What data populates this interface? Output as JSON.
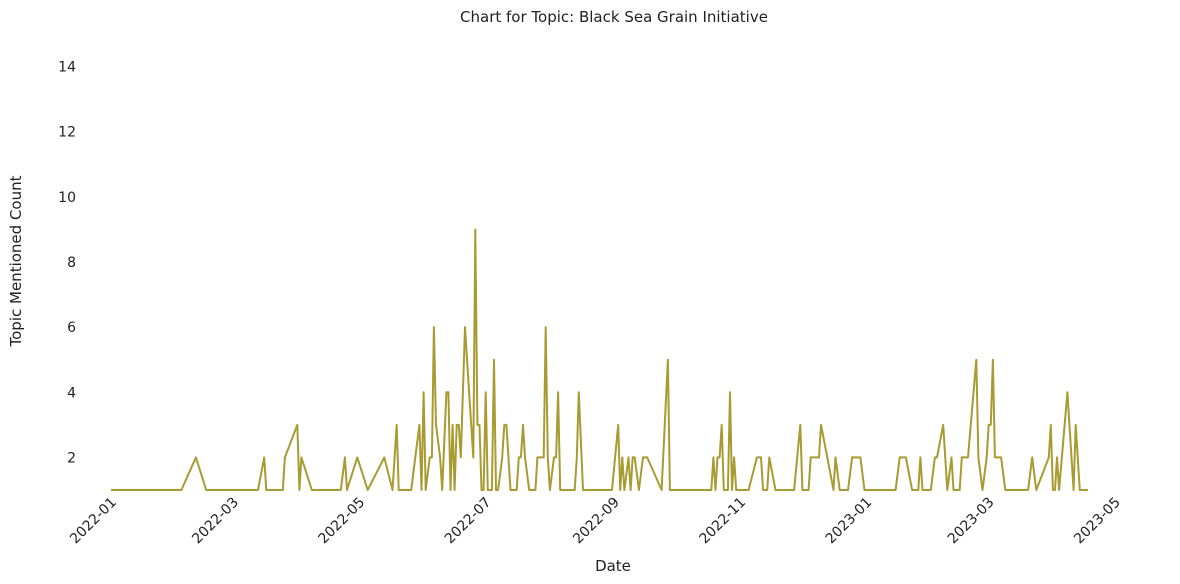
{
  "chart_data": {
    "type": "line",
    "title": "Chart for Topic: Black Sea Grain Initiative",
    "xlabel": "Date",
    "ylabel": "Topic Mentioned Count",
    "x_ticks": [
      "2022-01",
      "2022-03",
      "2022-05",
      "2022-07",
      "2022-09",
      "2022-11",
      "2023-01",
      "2023-03",
      "2023-05"
    ],
    "y_ticks": [
      2,
      4,
      6,
      8,
      10,
      12,
      14
    ],
    "xlim": [
      "2022-01-01",
      "2023-05-01"
    ],
    "ylim": [
      1,
      14.6
    ],
    "grid": false,
    "line_color": "#a89b32",
    "series": [
      {
        "points": [
          [
            "2022-01-01",
            1
          ],
          [
            "2022-02-04",
            1
          ],
          [
            "2022-02-11",
            2
          ],
          [
            "2022-02-16",
            1
          ],
          [
            "2022-03-09",
            1
          ],
          [
            "2022-03-13",
            1
          ],
          [
            "2022-03-16",
            2
          ],
          [
            "2022-03-17",
            1
          ],
          [
            "2022-03-25",
            1
          ],
          [
            "2022-03-26",
            2
          ],
          [
            "2022-04-01",
            3
          ],
          [
            "2022-04-02",
            1
          ],
          [
            "2022-04-03",
            2
          ],
          [
            "2022-04-08",
            1
          ],
          [
            "2022-04-22",
            1
          ],
          [
            "2022-04-24",
            2
          ],
          [
            "2022-04-25",
            1
          ],
          [
            "2022-04-30",
            2
          ],
          [
            "2022-05-05",
            1
          ],
          [
            "2022-05-13",
            2
          ],
          [
            "2022-05-17",
            1
          ],
          [
            "2022-05-19",
            3
          ],
          [
            "2022-05-20",
            1
          ],
          [
            "2022-05-26",
            1
          ],
          [
            "2022-05-30",
            3
          ],
          [
            "2022-05-31",
            1
          ],
          [
            "2022-06-01",
            4
          ],
          [
            "2022-06-02",
            1
          ],
          [
            "2022-06-04",
            2
          ],
          [
            "2022-06-05",
            2
          ],
          [
            "2022-06-06",
            6
          ],
          [
            "2022-06-07",
            3
          ],
          [
            "2022-06-09",
            2
          ],
          [
            "2022-06-10",
            1
          ],
          [
            "2022-06-12",
            4
          ],
          [
            "2022-06-13",
            4
          ],
          [
            "2022-06-14",
            1
          ],
          [
            "2022-06-15",
            3
          ],
          [
            "2022-06-16",
            1
          ],
          [
            "2022-06-17",
            3
          ],
          [
            "2022-06-18",
            3
          ],
          [
            "2022-06-19",
            2
          ],
          [
            "2022-06-21",
            6
          ],
          [
            "2022-06-24",
            3
          ],
          [
            "2022-06-25",
            2
          ],
          [
            "2022-06-26",
            9
          ],
          [
            "2022-06-27",
            3
          ],
          [
            "2022-06-28",
            3
          ],
          [
            "2022-06-29",
            1
          ],
          [
            "2022-06-30",
            1
          ],
          [
            "2022-07-01",
            4
          ],
          [
            "2022-07-02",
            1
          ],
          [
            "2022-07-04",
            1
          ],
          [
            "2022-07-05",
            5
          ],
          [
            "2022-07-06",
            1
          ],
          [
            "2022-07-07",
            1
          ],
          [
            "2022-07-09",
            2
          ],
          [
            "2022-07-10",
            3
          ],
          [
            "2022-07-11",
            3
          ],
          [
            "2022-07-13",
            1
          ],
          [
            "2022-07-16",
            1
          ],
          [
            "2022-07-17",
            2
          ],
          [
            "2022-07-18",
            2
          ],
          [
            "2022-07-19",
            3
          ],
          [
            "2022-07-20",
            2
          ],
          [
            "2022-07-22",
            1
          ],
          [
            "2022-07-25",
            1
          ],
          [
            "2022-07-26",
            2
          ],
          [
            "2022-07-29",
            2
          ],
          [
            "2022-07-30",
            6
          ],
          [
            "2022-07-31",
            2
          ],
          [
            "2022-08-01",
            1
          ],
          [
            "2022-08-03",
            2
          ],
          [
            "2022-08-04",
            2
          ],
          [
            "2022-08-05",
            4
          ],
          [
            "2022-08-06",
            1
          ],
          [
            "2022-08-13",
            1
          ],
          [
            "2022-08-14",
            2
          ],
          [
            "2022-08-15",
            4
          ],
          [
            "2022-08-17",
            1
          ],
          [
            "2022-08-31",
            1
          ],
          [
            "2022-09-03",
            3
          ],
          [
            "2022-09-04",
            1
          ],
          [
            "2022-09-05",
            2
          ],
          [
            "2022-09-06",
            1
          ],
          [
            "2022-09-08",
            2
          ],
          [
            "2022-09-09",
            1
          ],
          [
            "2022-09-10",
            2
          ],
          [
            "2022-09-11",
            2
          ],
          [
            "2022-09-13",
            1
          ],
          [
            "2022-09-15",
            2
          ],
          [
            "2022-09-17",
            2
          ],
          [
            "2022-09-24",
            1
          ],
          [
            "2022-09-27",
            5
          ],
          [
            "2022-09-28",
            1
          ],
          [
            "2022-10-18",
            1
          ],
          [
            "2022-10-19",
            2
          ],
          [
            "2022-10-20",
            1
          ],
          [
            "2022-10-21",
            2
          ],
          [
            "2022-10-22",
            2
          ],
          [
            "2022-10-23",
            3
          ],
          [
            "2022-10-24",
            1
          ],
          [
            "2022-10-26",
            1
          ],
          [
            "2022-10-27",
            4
          ],
          [
            "2022-10-28",
            1
          ],
          [
            "2022-10-29",
            2
          ],
          [
            "2022-10-30",
            1
          ],
          [
            "2022-11-05",
            1
          ],
          [
            "2022-11-09",
            2
          ],
          [
            "2022-11-11",
            2
          ],
          [
            "2022-11-12",
            1
          ],
          [
            "2022-11-14",
            1
          ],
          [
            "2022-11-15",
            2
          ],
          [
            "2022-11-18",
            1
          ],
          [
            "2022-11-27",
            1
          ],
          [
            "2022-11-30",
            3
          ],
          [
            "2022-12-01",
            1
          ],
          [
            "2022-12-04",
            1
          ],
          [
            "2022-12-05",
            2
          ],
          [
            "2022-12-09",
            2
          ],
          [
            "2022-12-10",
            3
          ],
          [
            "2022-12-13",
            2
          ],
          [
            "2022-12-16",
            1
          ],
          [
            "2022-12-17",
            2
          ],
          [
            "2022-12-19",
            1
          ],
          [
            "2022-12-23",
            1
          ],
          [
            "2022-12-25",
            2
          ],
          [
            "2022-12-29",
            2
          ],
          [
            "2022-12-31",
            1
          ],
          [
            "2023-01-15",
            1
          ],
          [
            "2023-01-17",
            2
          ],
          [
            "2023-01-20",
            2
          ],
          [
            "2023-01-23",
            1
          ],
          [
            "2023-01-26",
            1
          ],
          [
            "2023-01-27",
            2
          ],
          [
            "2023-01-28",
            1
          ],
          [
            "2023-02-01",
            1
          ],
          [
            "2023-02-03",
            2
          ],
          [
            "2023-02-04",
            2
          ],
          [
            "2023-02-07",
            3
          ],
          [
            "2023-02-09",
            1
          ],
          [
            "2023-02-11",
            2
          ],
          [
            "2023-02-12",
            1
          ],
          [
            "2023-02-15",
            1
          ],
          [
            "2023-02-16",
            2
          ],
          [
            "2023-02-19",
            2
          ],
          [
            "2023-02-23",
            5
          ],
          [
            "2023-02-24",
            2
          ],
          [
            "2023-02-26",
            1
          ],
          [
            "2023-02-28",
            2
          ],
          [
            "2023-03-01",
            3
          ],
          [
            "2023-03-02",
            3
          ],
          [
            "2023-03-03",
            5
          ],
          [
            "2023-03-04",
            2
          ],
          [
            "2023-03-07",
            2
          ],
          [
            "2023-03-09",
            1
          ],
          [
            "2023-03-20",
            1
          ],
          [
            "2023-03-22",
            2
          ],
          [
            "2023-03-24",
            1
          ],
          [
            "2023-03-30",
            2
          ],
          [
            "2023-03-31",
            3
          ],
          [
            "2023-04-01",
            1
          ],
          [
            "2023-04-02",
            1
          ],
          [
            "2023-04-03",
            2
          ],
          [
            "2023-04-04",
            1
          ],
          [
            "2023-04-08",
            4
          ],
          [
            "2023-04-10",
            2
          ],
          [
            "2023-04-11",
            1
          ],
          [
            "2023-04-12",
            3
          ],
          [
            "2023-04-14",
            1
          ],
          [
            "2023-04-15",
            1
          ],
          [
            "2023-04-18",
            1
          ]
        ]
      }
    ]
  }
}
